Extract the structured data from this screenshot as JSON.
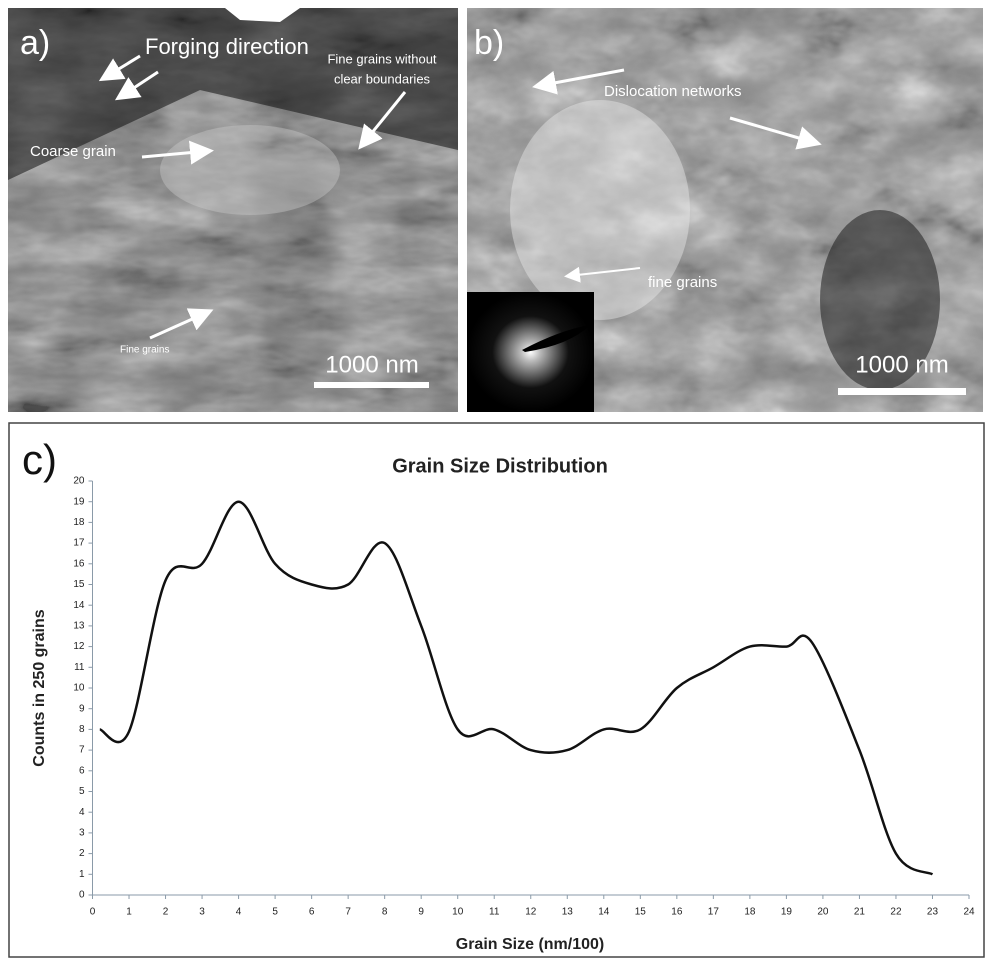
{
  "panels": [
    {
      "label": "a)",
      "annotations": [
        "Forging direction",
        [
          "Fine grains without",
          "clear boundaries"
        ],
        "Coarse grain",
        "Fine grains"
      ],
      "scale_bar": "1000 nm"
    },
    {
      "label": "b)",
      "annotations": [
        "Dislocation networks",
        "fine grains"
      ],
      "scale_bar": "1000 nm"
    }
  ],
  "chart_data": {
    "type": "line",
    "panel_label": "c)",
    "title": "Grain Size Distribution",
    "x_label": "Grain Size (nm/100)",
    "y_label": "Counts in 250 grains",
    "x": [
      0.2,
      1,
      2,
      3,
      4,
      5,
      6,
      7,
      8,
      9,
      10,
      11,
      12,
      13,
      14,
      15,
      16,
      17,
      18,
      19,
      19.7,
      21,
      22,
      23
    ],
    "series": [
      {
        "color": "#111111",
        "values": [
          8,
          7.9,
          15.2,
          16,
          19,
          16,
          15,
          15,
          17,
          13,
          8,
          8,
          7,
          7,
          8,
          8,
          10,
          11,
          12,
          12,
          12.2,
          7,
          2,
          1
        ]
      }
    ],
    "smooth": true,
    "xlim": [
      0,
      24
    ],
    "ylim": [
      0,
      20
    ],
    "xticks": [
      0,
      1,
      2,
      3,
      4,
      5,
      6,
      7,
      8,
      9,
      10,
      11,
      12,
      13,
      14,
      15,
      16,
      17,
      18,
      19,
      20,
      21,
      22,
      23,
      24
    ],
    "yticks": [
      0,
      1,
      2,
      3,
      4,
      5,
      6,
      7,
      8,
      9,
      10,
      11,
      12,
      13,
      14,
      15,
      16,
      17,
      18,
      19,
      20
    ],
    "grid": false
  }
}
